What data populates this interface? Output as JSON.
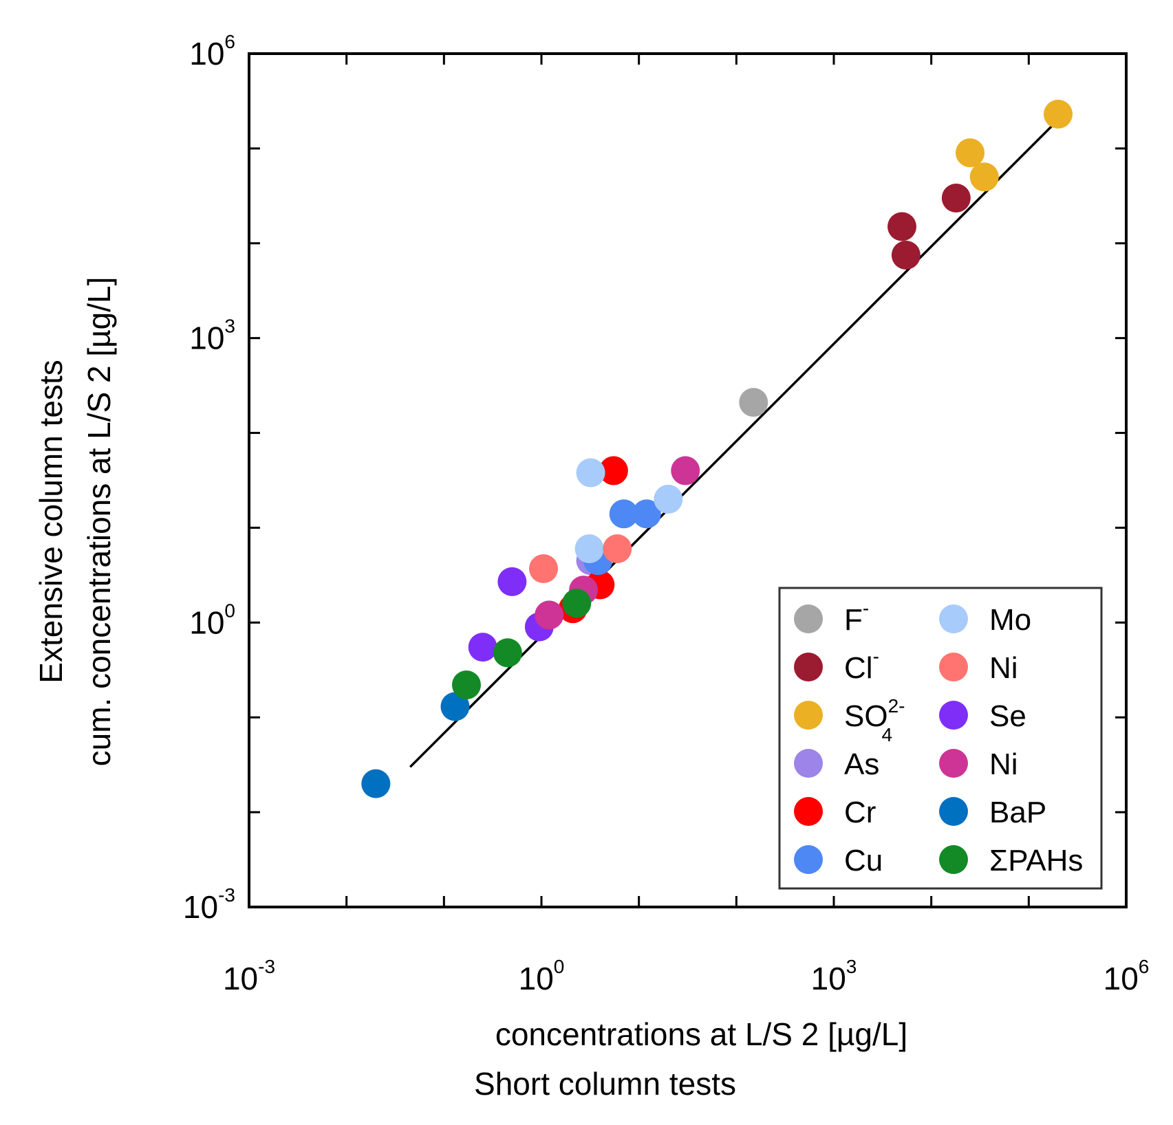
{
  "chart_data": {
    "type": "scatter",
    "xscale": "log",
    "yscale": "log",
    "xlim": [
      0.001,
      1000000
    ],
    "ylim": [
      0.001,
      1000000
    ],
    "x_ticks": [
      {
        "value": 0.001,
        "base": "10",
        "exp": "-3"
      },
      {
        "value": 1,
        "base": "10",
        "exp": "0"
      },
      {
        "value": 1000,
        "base": "10",
        "exp": "3"
      },
      {
        "value": 1000000,
        "base": "10",
        "exp": "6"
      }
    ],
    "y_ticks": [
      {
        "value": 0.001,
        "base": "10",
        "exp": "-3"
      },
      {
        "value": 1,
        "base": "10",
        "exp": "0"
      },
      {
        "value": 1000,
        "base": "10",
        "exp": "3"
      },
      {
        "value": 1000000,
        "base": "10",
        "exp": "6"
      }
    ],
    "xlabel_lines": [
      "concentrations at L/S 2 [µg/L]",
      "Short column tests"
    ],
    "ylabel_lines": [
      "Extensive column tests",
      "cum. concentrations at L/S 2 [µg/L]"
    ],
    "legend_position": "bottom-right",
    "grid": false,
    "fit_line": {
      "x": [
        0.045,
        180000
      ],
      "y": [
        0.03,
        180000
      ],
      "color": "#000000"
    },
    "series": [
      {
        "name": "F",
        "sup": "-",
        "sub": "",
        "color": "#A6A6A6",
        "points": [
          [
            150,
            210
          ]
        ]
      },
      {
        "name": "Cl",
        "sup": "-",
        "sub": "",
        "color": "#9B1B30",
        "points": [
          [
            5000,
            15000
          ],
          [
            5500,
            7500
          ],
          [
            18000,
            30000
          ]
        ]
      },
      {
        "name": "SO",
        "sup": "2-",
        "sub": "4",
        "color": "#EBB023",
        "points": [
          [
            200000,
            230000
          ],
          [
            25000,
            90000
          ],
          [
            35000,
            50000
          ]
        ]
      },
      {
        "name": "As",
        "sup": "",
        "sub": "",
        "color": "#9C84E8",
        "points": [
          [
            3.2,
            4.5
          ]
        ]
      },
      {
        "name": "Cr",
        "sup": "",
        "sub": "",
        "color": "#FF0000",
        "points": [
          [
            5.5,
            40
          ],
          [
            4,
            2.5
          ],
          [
            2.1,
            1.4
          ]
        ]
      },
      {
        "name": "Cu",
        "sup": "",
        "sub": "",
        "color": "#4D88F4",
        "points": [
          [
            7,
            14
          ],
          [
            12,
            14
          ],
          [
            3.8,
            4.5
          ]
        ]
      },
      {
        "name": "Mo",
        "sup": "",
        "sub": "",
        "color": "#A7CBFA",
        "points": [
          [
            3.2,
            38
          ],
          [
            3.1,
            6
          ],
          [
            20,
            20
          ]
        ]
      },
      {
        "name": "Ni",
        "sup": "",
        "sub": "",
        "color": "#FF7470",
        "points": [
          [
            1.05,
            3.7
          ],
          [
            6,
            6
          ]
        ]
      },
      {
        "name": "Se",
        "sup": "",
        "sub": "",
        "color": "#7E2EF7",
        "points": [
          [
            0.5,
            2.7
          ],
          [
            0.25,
            0.55
          ],
          [
            0.95,
            0.9
          ]
        ]
      },
      {
        "name": "Ni",
        "sup": "",
        "sub": "",
        "color": "#CD3495",
        "points": [
          [
            1.2,
            1.2
          ],
          [
            2.7,
            2.2
          ],
          [
            30,
            40
          ]
        ]
      },
      {
        "name": "BaP",
        "sup": "",
        "sub": "",
        "color": "#0070C0",
        "points": [
          [
            0.02,
            0.02
          ],
          [
            0.13,
            0.13
          ]
        ]
      },
      {
        "name": "ΣPAHs",
        "sup": "",
        "sub": "",
        "color": "#138A26",
        "points": [
          [
            0.45,
            0.48
          ],
          [
            0.17,
            0.22
          ],
          [
            2.3,
            1.6
          ]
        ]
      }
    ]
  }
}
